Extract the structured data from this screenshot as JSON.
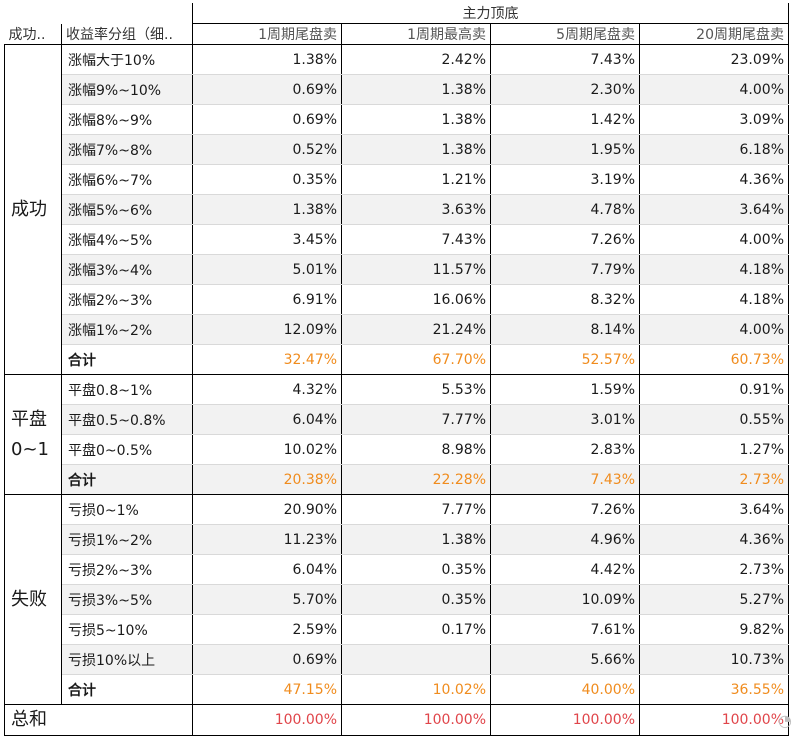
{
  "header": {
    "group_label": "成功..",
    "sub_label": "收益率分组（细..",
    "super_label": "主力顶底",
    "columns": [
      "1周期尾盘卖",
      "1周期最高卖",
      "5周期尾盘卖",
      "20周期尾盘卖"
    ]
  },
  "groups": [
    {
      "name": "成功",
      "rows": [
        {
          "label": "涨幅大于10%",
          "values": [
            "1.38%",
            "2.42%",
            "7.43%",
            "23.09%"
          ]
        },
        {
          "label": "涨幅9%~10%",
          "values": [
            "0.69%",
            "1.38%",
            "2.30%",
            "4.00%"
          ]
        },
        {
          "label": "涨幅8%~9%",
          "values": [
            "0.69%",
            "1.38%",
            "1.42%",
            "3.09%"
          ]
        },
        {
          "label": "涨幅7%~8%",
          "values": [
            "0.52%",
            "1.38%",
            "1.95%",
            "6.18%"
          ]
        },
        {
          "label": "涨幅6%~7%",
          "values": [
            "0.35%",
            "1.21%",
            "3.19%",
            "4.36%"
          ]
        },
        {
          "label": "涨幅5%~6%",
          "values": [
            "1.38%",
            "3.63%",
            "4.78%",
            "3.64%"
          ]
        },
        {
          "label": "涨幅4%~5%",
          "values": [
            "3.45%",
            "7.43%",
            "7.26%",
            "4.00%"
          ]
        },
        {
          "label": "涨幅3%~4%",
          "values": [
            "5.01%",
            "11.57%",
            "7.79%",
            "4.18%"
          ]
        },
        {
          "label": "涨幅2%~3%",
          "values": [
            "6.91%",
            "16.06%",
            "8.32%",
            "4.18%"
          ]
        },
        {
          "label": "涨幅1%~2%",
          "values": [
            "12.09%",
            "21.24%",
            "8.14%",
            "4.00%"
          ]
        }
      ],
      "total": {
        "label": "合计",
        "values": [
          "32.47%",
          "67.70%",
          "52.57%",
          "60.73%"
        ]
      }
    },
    {
      "name": "平盘0~1",
      "rows": [
        {
          "label": "平盘0.8~1%",
          "values": [
            "4.32%",
            "5.53%",
            "1.59%",
            "0.91%"
          ]
        },
        {
          "label": "平盘0.5~0.8%",
          "values": [
            "6.04%",
            "7.77%",
            "3.01%",
            "0.55%"
          ]
        },
        {
          "label": "平盘0~0.5%",
          "values": [
            "10.02%",
            "8.98%",
            "2.83%",
            "1.27%"
          ]
        }
      ],
      "total": {
        "label": "合计",
        "values": [
          "20.38%",
          "22.28%",
          "7.43%",
          "2.73%"
        ]
      }
    },
    {
      "name": "失败",
      "rows": [
        {
          "label": "亏损0~1%",
          "values": [
            "20.90%",
            "7.77%",
            "7.26%",
            "3.64%"
          ]
        },
        {
          "label": "亏损1%~2%",
          "values": [
            "11.23%",
            "1.38%",
            "4.96%",
            "4.36%"
          ]
        },
        {
          "label": "亏损2%~3%",
          "values": [
            "6.04%",
            "0.35%",
            "4.42%",
            "2.73%"
          ]
        },
        {
          "label": "亏损3%~5%",
          "values": [
            "5.70%",
            "0.35%",
            "10.09%",
            "5.27%"
          ]
        },
        {
          "label": "亏损5~10%",
          "values": [
            "2.59%",
            "0.17%",
            "7.61%",
            "9.82%"
          ]
        },
        {
          "label": "亏损10%以上",
          "values": [
            "0.69%",
            "",
            "5.66%",
            "10.73%"
          ]
        }
      ],
      "total": {
        "label": "合计",
        "values": [
          "47.15%",
          "10.02%",
          "40.00%",
          "36.55%"
        ]
      }
    }
  ],
  "grand_total": {
    "label": "总和",
    "values": [
      "100.00%",
      "100.00%",
      "100.00%",
      "100.00%"
    ]
  },
  "colors": {
    "total_orange": "#f08c1e",
    "grand_red": "#e0454a",
    "zebra": "#f2f2f2"
  }
}
